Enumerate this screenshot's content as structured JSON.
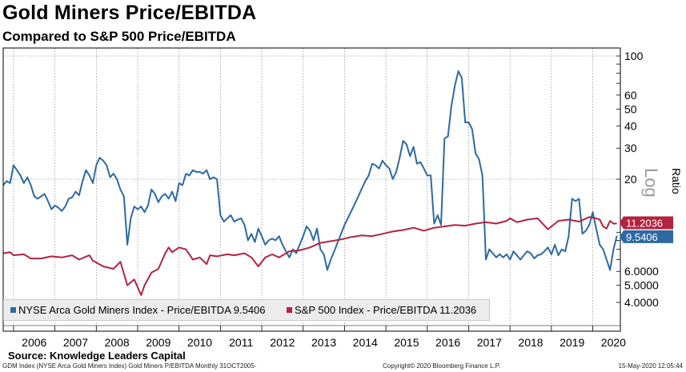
{
  "title": "Gold Miners Price/EBITDA",
  "subtitle": "Compared to S&P 500 Price/EBITDA",
  "source": "Source: Knowledge Leaders Capital",
  "footer": {
    "left": "GDM Index (NYSE Arca Gold Miners Index) Gold Miners P/EBITDA  Monthly 31OCT2005-",
    "middle": "Copyright© 2020 Bloomberg Finance L.P.",
    "right": "15-May-2020 12:05:44"
  },
  "chart_data": {
    "type": "line",
    "y_scale": "log",
    "ylabel": "Ratio",
    "scale_label": "Log",
    "x_tick_labels": [
      "2006",
      "2007",
      "2008",
      "2009",
      "2010",
      "2011",
      "2012",
      "2013",
      "2014",
      "2015",
      "2016",
      "2017",
      "2018",
      "2019",
      "2020"
    ],
    "y_tick_labels": [
      {
        "value": 100,
        "label": "100"
      },
      {
        "value": 60,
        "label": "60"
      },
      {
        "value": 50,
        "label": "50"
      },
      {
        "value": 40,
        "label": "40"
      },
      {
        "value": 30,
        "label": "30"
      },
      {
        "value": 20,
        "label": "20"
      },
      {
        "value": 6,
        "label": "6.0000"
      },
      {
        "value": 5,
        "label": "5.0000"
      },
      {
        "value": 4,
        "label": "4.0000"
      }
    ],
    "gridlines": [
      100,
      20
    ],
    "grid": true,
    "legend_position": "bottom-left",
    "series": [
      {
        "name": "NYSE Arca Gold Miners Index - Price/EBITDA",
        "legend": "NYSE Arca Gold Miners Index - Price/EBITDA 9.5406",
        "last_label": "9.5406",
        "last_value": 9.5406,
        "color": "#2d6aa3",
        "points": [
          [
            "2005-10",
            18.5
          ],
          [
            "2005-11",
            19.5
          ],
          [
            "2005-12",
            19.0
          ],
          [
            "2006-01",
            24.0
          ],
          [
            "2006-02",
            22.5
          ],
          [
            "2006-03",
            21.0
          ],
          [
            "2006-04",
            19.0
          ],
          [
            "2006-05",
            20.5
          ],
          [
            "2006-06",
            18.5
          ],
          [
            "2006-07",
            16.0
          ],
          [
            "2006-08",
            15.5
          ],
          [
            "2006-09",
            16.0
          ],
          [
            "2006-10",
            16.5
          ],
          [
            "2006-11",
            15.0
          ],
          [
            "2006-12",
            13.5
          ],
          [
            "2007-01",
            14.2
          ],
          [
            "2007-02",
            13.8
          ],
          [
            "2007-03",
            13.2
          ],
          [
            "2007-04",
            14.0
          ],
          [
            "2007-05",
            15.5
          ],
          [
            "2007-06",
            15.8
          ],
          [
            "2007-07",
            17.0
          ],
          [
            "2007-08",
            16.2
          ],
          [
            "2007-09",
            19.5
          ],
          [
            "2007-10",
            22.5
          ],
          [
            "2007-11",
            21.0
          ],
          [
            "2007-12",
            19.0
          ],
          [
            "2008-01",
            24.0
          ],
          [
            "2008-02",
            26.5
          ],
          [
            "2008-03",
            25.5
          ],
          [
            "2008-04",
            24.0
          ],
          [
            "2008-05",
            20.5
          ],
          [
            "2008-06",
            21.5
          ],
          [
            "2008-07",
            20.0
          ],
          [
            "2008-08",
            17.5
          ],
          [
            "2008-09",
            16.0
          ],
          [
            "2008-10",
            8.5
          ],
          [
            "2008-11",
            12.0
          ],
          [
            "2008-12",
            14.0
          ],
          [
            "2009-01",
            13.5
          ],
          [
            "2009-02",
            14.0
          ],
          [
            "2009-03",
            13.0
          ],
          [
            "2009-04",
            14.2
          ],
          [
            "2009-05",
            17.5
          ],
          [
            "2009-06",
            16.5
          ],
          [
            "2009-07",
            14.8
          ],
          [
            "2009-08",
            16.0
          ],
          [
            "2009-09",
            16.5
          ],
          [
            "2009-10",
            15.5
          ],
          [
            "2009-11",
            17.0
          ],
          [
            "2009-12",
            15.0
          ],
          [
            "2010-01",
            19.0
          ],
          [
            "2010-02",
            18.5
          ],
          [
            "2010-03",
            21.5
          ],
          [
            "2010-04",
            21.0
          ],
          [
            "2010-05",
            22.5
          ],
          [
            "2010-06",
            22.0
          ],
          [
            "2010-07",
            22.0
          ],
          [
            "2010-08",
            21.5
          ],
          [
            "2010-09",
            22.5
          ],
          [
            "2010-10",
            20.0
          ],
          [
            "2010-11",
            20.5
          ],
          [
            "2010-12",
            20.0
          ],
          [
            "2011-01",
            12.5
          ],
          [
            "2011-02",
            11.5
          ],
          [
            "2011-03",
            12.0
          ],
          [
            "2011-04",
            12.5
          ],
          [
            "2011-05",
            11.5
          ],
          [
            "2011-06",
            11.8
          ],
          [
            "2011-07",
            12.0
          ],
          [
            "2011-08",
            11.0
          ],
          [
            "2011-09",
            9.0
          ],
          [
            "2011-10",
            9.8
          ],
          [
            "2011-11",
            8.8
          ],
          [
            "2011-12",
            10.5
          ],
          [
            "2012-01",
            9.5
          ],
          [
            "2012-02",
            8.5
          ],
          [
            "2012-03",
            9.0
          ],
          [
            "2012-04",
            9.2
          ],
          [
            "2012-05",
            9.0
          ],
          [
            "2012-06",
            9.5
          ],
          [
            "2012-07",
            8.5
          ],
          [
            "2012-08",
            7.8
          ],
          [
            "2012-09",
            7.2
          ],
          [
            "2012-10",
            8.0
          ],
          [
            "2012-11",
            7.6
          ],
          [
            "2012-12",
            8.5
          ],
          [
            "2013-01",
            9.5
          ],
          [
            "2013-02",
            10.8
          ],
          [
            "2013-03",
            10.2
          ],
          [
            "2013-04",
            9.0
          ],
          [
            "2013-05",
            10.5
          ],
          [
            "2013-06",
            8.0
          ],
          [
            "2013-07",
            7.5
          ],
          [
            "2013-08",
            6.1
          ],
          [
            "2013-09",
            7.0
          ],
          [
            "2013-10",
            7.8
          ],
          [
            "2014-01",
            11.0
          ],
          [
            "2014-04",
            14.5
          ],
          [
            "2014-07",
            19.5
          ],
          [
            "2014-08",
            21.0
          ],
          [
            "2014-09",
            24.5
          ],
          [
            "2014-10",
            24.0
          ],
          [
            "2014-11",
            23.0
          ],
          [
            "2014-12",
            25.5
          ],
          [
            "2015-01",
            24.0
          ],
          [
            "2015-02",
            23.0
          ],
          [
            "2015-03",
            20.0
          ],
          [
            "2015-04",
            22.0
          ],
          [
            "2015-05",
            26.5
          ],
          [
            "2015-06",
            33.0
          ],
          [
            "2015-07",
            31.5
          ],
          [
            "2015-08",
            27.0
          ],
          [
            "2015-09",
            30.5
          ],
          [
            "2015-10",
            24.5
          ],
          [
            "2015-11",
            25.0
          ],
          [
            "2015-12",
            23.0
          ],
          [
            "2016-01",
            21.0
          ],
          [
            "2016-02",
            21.0
          ],
          [
            "2016-03",
            11.2
          ],
          [
            "2016-04",
            12.5
          ],
          [
            "2016-05",
            11.0
          ],
          [
            "2016-06",
            34.0
          ],
          [
            "2016-07",
            35.0
          ],
          [
            "2016-08",
            52.0
          ],
          [
            "2016-09",
            68.0
          ],
          [
            "2016-10",
            82.0
          ],
          [
            "2016-11",
            75.0
          ],
          [
            "2016-12",
            42.0
          ],
          [
            "2017-01",
            42.0
          ],
          [
            "2017-02",
            38.5
          ],
          [
            "2017-03",
            28.0
          ],
          [
            "2017-04",
            26.0
          ],
          [
            "2017-05",
            21.0
          ],
          [
            "2017-06",
            7.0
          ],
          [
            "2017-07",
            8.0
          ],
          [
            "2017-08",
            7.6
          ],
          [
            "2017-09",
            7.2
          ],
          [
            "2017-10",
            7.5
          ],
          [
            "2017-11",
            7.2
          ],
          [
            "2017-12",
            7.5
          ],
          [
            "2018-01",
            7.0
          ],
          [
            "2018-02",
            7.8
          ],
          [
            "2018-03",
            7.4
          ],
          [
            "2018-04",
            7.0
          ],
          [
            "2018-05",
            7.4
          ],
          [
            "2018-06",
            7.8
          ],
          [
            "2018-07",
            7.6
          ],
          [
            "2018-08",
            7.1
          ],
          [
            "2018-09",
            7.4
          ],
          [
            "2018-10",
            7.5
          ],
          [
            "2018-11",
            7.8
          ],
          [
            "2018-12",
            8.2
          ],
          [
            "2019-01",
            7.5
          ],
          [
            "2019-02",
            8.5
          ],
          [
            "2019-03",
            7.4
          ],
          [
            "2019-04",
            8.0
          ],
          [
            "2019-05",
            7.8
          ],
          [
            "2019-06",
            9.5
          ],
          [
            "2019-07",
            15.5
          ],
          [
            "2019-08",
            15.0
          ],
          [
            "2019-09",
            15.5
          ],
          [
            "2019-10",
            9.8
          ],
          [
            "2019-11",
            10.2
          ],
          [
            "2019-12",
            11.0
          ],
          [
            "2020-01",
            13.0
          ],
          [
            "2020-02",
            10.5
          ],
          [
            "2020-03",
            8.5
          ],
          [
            "2020-04",
            8.0
          ],
          [
            "2020-05",
            7.0
          ],
          [
            "2020-06",
            6.1
          ],
          [
            "2020-07",
            8.0
          ],
          [
            "2020-08",
            9.5406
          ]
        ]
      },
      {
        "name": "S&P 500 Index - Price/EBITDA",
        "legend": "S&P 500 Index - Price/EBITDA 11.2036",
        "last_label": "11.2036",
        "last_value": 11.2036,
        "color": "#b2233f",
        "points": [
          [
            "2005-10",
            7.6
          ],
          [
            "2005-12",
            7.7
          ],
          [
            "2006-01",
            7.4
          ],
          [
            "2006-04",
            7.5
          ],
          [
            "2006-06",
            7.1
          ],
          [
            "2006-09",
            7.1
          ],
          [
            "2006-12",
            7.3
          ],
          [
            "2007-03",
            7.2
          ],
          [
            "2007-06",
            7.4
          ],
          [
            "2007-08",
            7.0
          ],
          [
            "2007-11",
            7.4
          ],
          [
            "2007-12",
            6.9
          ],
          [
            "2008-03",
            6.4
          ],
          [
            "2008-06",
            6.2
          ],
          [
            "2008-08",
            6.8
          ],
          [
            "2008-10",
            5.0
          ],
          [
            "2008-12",
            5.4
          ],
          [
            "2009-02",
            4.4
          ],
          [
            "2009-03",
            5.0
          ],
          [
            "2009-05",
            5.9
          ],
          [
            "2009-07",
            6.2
          ],
          [
            "2009-09",
            7.6
          ],
          [
            "2009-10",
            8.2
          ],
          [
            "2009-11",
            7.7
          ],
          [
            "2010-01",
            8.2
          ],
          [
            "2010-03",
            8.0
          ],
          [
            "2010-05",
            7.0
          ],
          [
            "2010-07",
            7.2
          ],
          [
            "2010-09",
            6.6
          ],
          [
            "2010-10",
            7.4
          ],
          [
            "2010-12",
            7.3
          ],
          [
            "2011-03",
            7.5
          ],
          [
            "2011-05",
            7.4
          ],
          [
            "2011-08",
            7.6
          ],
          [
            "2011-10",
            7.2
          ],
          [
            "2011-12",
            6.4
          ],
          [
            "2012-02",
            7.2
          ],
          [
            "2012-04",
            7.5
          ],
          [
            "2012-06",
            7.2
          ],
          [
            "2012-09",
            7.8
          ],
          [
            "2012-12",
            7.9
          ],
          [
            "2013-03",
            8.2
          ],
          [
            "2013-06",
            8.7
          ],
          [
            "2013-09",
            8.9
          ],
          [
            "2013-12",
            9.1
          ],
          [
            "2014-03",
            9.4
          ],
          [
            "2014-06",
            9.6
          ],
          [
            "2014-09",
            9.5
          ],
          [
            "2014-12",
            9.8
          ],
          [
            "2015-03",
            10.1
          ],
          [
            "2015-06",
            10.3
          ],
          [
            "2015-09",
            10.6
          ],
          [
            "2015-12",
            10.2
          ],
          [
            "2016-03",
            10.6
          ],
          [
            "2016-06",
            10.8
          ],
          [
            "2016-09",
            11.0
          ],
          [
            "2016-12",
            10.9
          ],
          [
            "2017-03",
            11.2
          ],
          [
            "2017-06",
            11.4
          ],
          [
            "2017-09",
            11.2
          ],
          [
            "2017-12",
            11.6
          ],
          [
            "2018-01",
            12.0
          ],
          [
            "2018-03",
            11.4
          ],
          [
            "2018-06",
            11.8
          ],
          [
            "2018-09",
            12.0
          ],
          [
            "2018-12",
            10.4
          ],
          [
            "2019-03",
            11.6
          ],
          [
            "2019-06",
            11.8
          ],
          [
            "2019-09",
            11.5
          ],
          [
            "2019-12",
            12.2
          ],
          [
            "2020-02",
            12.0
          ],
          [
            "2020-03",
            11.8
          ],
          [
            "2020-04",
            10.8
          ],
          [
            "2020-05",
            10.5
          ],
          [
            "2020-06",
            11.6
          ],
          [
            "2020-07",
            11.2
          ],
          [
            "2020-08",
            11.2036
          ]
        ]
      }
    ]
  }
}
